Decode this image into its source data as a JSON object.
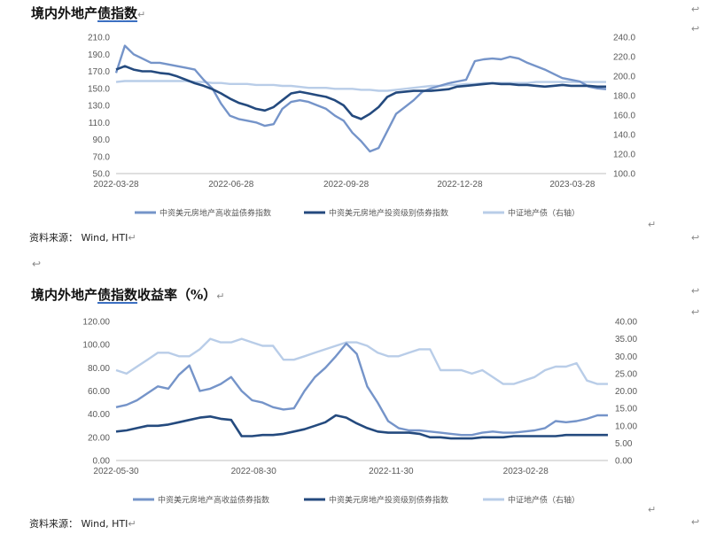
{
  "titles": {
    "chart1_pre": "境内外地产",
    "chart1_ul": "债指数",
    "chart2_pre": "境内外地产",
    "chart2_ul": "债指数",
    "chart2_post": "收益率（%）"
  },
  "source_text": "资料来源：  Wind, HTI",
  "marks": {
    "return": "↵",
    "arrow": "↩"
  },
  "colors": {
    "hy": "#7594c9",
    "ig": "#244a7e",
    "cn": "#b9cde8",
    "axis": "#bfbfbf",
    "text": "#595959"
  },
  "chart_data": [
    {
      "type": "line",
      "title": "境内外地产债指数",
      "x_dates": [
        "2022-03-28",
        "2022-04-04",
        "2022-04-11",
        "2022-04-18",
        "2022-04-25",
        "2022-05-02",
        "2022-05-09",
        "2022-05-16",
        "2022-05-23",
        "2022-05-30",
        "2022-06-06",
        "2022-06-13",
        "2022-06-20",
        "2022-06-27",
        "2022-07-04",
        "2022-07-11",
        "2022-07-18",
        "2022-07-25",
        "2022-08-01",
        "2022-08-08",
        "2022-08-15",
        "2022-08-22",
        "2022-08-29",
        "2022-09-05",
        "2022-09-12",
        "2022-09-19",
        "2022-09-26",
        "2022-10-03",
        "2022-10-10",
        "2022-10-17",
        "2022-10-24",
        "2022-10-31",
        "2022-11-07",
        "2022-11-14",
        "2022-11-21",
        "2022-11-28",
        "2022-12-05",
        "2022-12-12",
        "2022-12-19",
        "2022-12-26",
        "2023-01-02",
        "2023-01-09",
        "2023-01-16",
        "2023-01-23",
        "2023-01-30",
        "2023-02-06",
        "2023-02-13",
        "2023-02-20",
        "2023-02-27",
        "2023-03-06",
        "2023-03-13",
        "2023-03-20",
        "2023-03-27",
        "2023-04-03",
        "2023-04-10",
        "2023-04-17",
        "2023-04-24"
      ],
      "x_ticks": [
        "2022-03-28",
        "2022-06-28",
        "2022-09-28",
        "2022-12-28",
        "2023-03-28"
      ],
      "y_left_range": [
        50,
        210
      ],
      "y_left_ticks": [
        "50.0",
        "70.0",
        "90.0",
        "110.0",
        "130.0",
        "150.0",
        "170.0",
        "190.0",
        "210.0"
      ],
      "y_right_range": [
        100,
        240
      ],
      "y_right_ticks": [
        "100.0",
        "120.0",
        "140.0",
        "160.0",
        "180.0",
        "200.0",
        "220.0",
        "240.0"
      ],
      "series": [
        {
          "name": "中资美元房地产高收益债券指数",
          "axis": "left",
          "color": "#7594c9",
          "values": [
            168,
            200,
            190,
            185,
            180,
            180,
            178,
            176,
            174,
            172,
            160,
            150,
            132,
            118,
            114,
            112,
            110,
            106,
            108,
            126,
            134,
            136,
            134,
            130,
            126,
            118,
            112,
            98,
            88,
            76,
            80,
            100,
            120,
            128,
            136,
            146,
            150,
            153,
            156,
            158,
            160,
            182,
            184,
            185,
            184,
            187,
            185,
            180,
            176,
            172,
            167,
            162,
            160,
            158,
            152,
            150,
            149
          ]
        },
        {
          "name": "中资美元房地产投资级别债券指数",
          "axis": "left",
          "color": "#244a7e",
          "values": [
            172,
            176,
            172,
            170,
            170,
            168,
            167,
            164,
            160,
            156,
            153,
            149,
            144,
            138,
            133,
            130,
            126,
            124,
            128,
            136,
            144,
            146,
            144,
            142,
            140,
            136,
            130,
            118,
            114,
            120,
            128,
            140,
            145,
            146,
            147,
            147,
            147,
            148,
            149,
            152,
            153,
            154,
            155,
            156,
            155,
            155,
            154,
            154,
            153,
            152,
            153,
            154,
            153,
            153,
            153,
            152,
            152
          ]
        },
        {
          "name": "中证地产债（右轴）",
          "axis": "right",
          "color": "#b9cde8",
          "values": [
            194,
            195,
            195,
            195,
            195,
            195,
            195,
            195,
            195,
            194,
            194,
            193,
            193,
            192,
            192,
            192,
            191,
            191,
            191,
            190,
            190,
            189,
            188,
            188,
            188,
            187,
            187,
            187,
            186,
            186,
            185,
            185,
            186,
            187,
            188,
            189,
            190,
            190,
            191,
            191,
            192,
            192,
            193,
            193,
            193,
            193,
            193,
            193,
            194,
            194,
            194,
            194,
            194,
            194,
            194,
            194,
            194
          ]
        }
      ]
    },
    {
      "type": "line",
      "title": "境内外地产债指数收益率（%）",
      "x_dates": [
        "2022-05-30",
        "2022-06-06",
        "2022-06-13",
        "2022-06-20",
        "2022-06-27",
        "2022-07-04",
        "2022-07-11",
        "2022-07-18",
        "2022-07-25",
        "2022-08-01",
        "2022-08-08",
        "2022-08-15",
        "2022-08-22",
        "2022-08-29",
        "2022-09-05",
        "2022-09-12",
        "2022-09-19",
        "2022-09-26",
        "2022-10-03",
        "2022-10-10",
        "2022-10-17",
        "2022-10-24",
        "2022-10-31",
        "2022-11-07",
        "2022-11-14",
        "2022-11-21",
        "2022-11-28",
        "2022-12-05",
        "2022-12-12",
        "2022-12-19",
        "2022-12-26",
        "2023-01-02",
        "2023-01-09",
        "2023-01-16",
        "2023-01-23",
        "2023-01-30",
        "2023-02-06",
        "2023-02-13",
        "2023-02-20",
        "2023-02-27",
        "2023-03-06",
        "2023-03-13",
        "2023-03-20",
        "2023-03-27",
        "2023-04-03",
        "2023-04-10",
        "2023-04-17",
        "2023-04-24"
      ],
      "x_ticks": [
        "2022-05-30",
        "2022-08-30",
        "2022-11-30",
        "2023-02-28"
      ],
      "y_left_range": [
        0,
        120
      ],
      "y_left_ticks": [
        "0.00",
        "20.00",
        "40.00",
        "60.00",
        "80.00",
        "100.00",
        "120.00"
      ],
      "y_right_range": [
        0,
        40
      ],
      "y_right_ticks": [
        "0.00",
        "5.00",
        "10.00",
        "15.00",
        "20.00",
        "25.00",
        "30.00",
        "35.00",
        "40.00"
      ],
      "series": [
        {
          "name": "中资美元房地产高收益债券指数",
          "axis": "left",
          "color": "#7594c9",
          "values": [
            46,
            48,
            52,
            58,
            64,
            62,
            74,
            82,
            60,
            62,
            66,
            72,
            60,
            52,
            50,
            46,
            44,
            45,
            60,
            72,
            80,
            90,
            101,
            92,
            64,
            50,
            34,
            28,
            26,
            26,
            25,
            24,
            23,
            22,
            22,
            24,
            25,
            24,
            24,
            25,
            26,
            28,
            34,
            33,
            34,
            36,
            39,
            39
          ]
        },
        {
          "name": "中资美元房地产投资级别债券指数",
          "axis": "left",
          "color": "#244a7e",
          "values": [
            25,
            26,
            28,
            30,
            30,
            31,
            33,
            35,
            37,
            38,
            36,
            35,
            21,
            21,
            22,
            22,
            23,
            25,
            27,
            30,
            33,
            39,
            37,
            32,
            28,
            25,
            24,
            24,
            24,
            23,
            20,
            20,
            19,
            19,
            19,
            20,
            20,
            20,
            21,
            21,
            21,
            21,
            21,
            22,
            22,
            22,
            22,
            22
          ]
        },
        {
          "name": "中证地产债（右轴）",
          "axis": "right",
          "color": "#b9cde8",
          "values": [
            26,
            25,
            27,
            29,
            31,
            31,
            30,
            30,
            32,
            35,
            34,
            34,
            35,
            34,
            33,
            33,
            29,
            29,
            30,
            31,
            32,
            33,
            34,
            34,
            33,
            31,
            30,
            30,
            31,
            32,
            32,
            26,
            26,
            26,
            25,
            26,
            24,
            22,
            22,
            23,
            24,
            26,
            27,
            27,
            28,
            23,
            22,
            22
          ]
        }
      ]
    }
  ]
}
